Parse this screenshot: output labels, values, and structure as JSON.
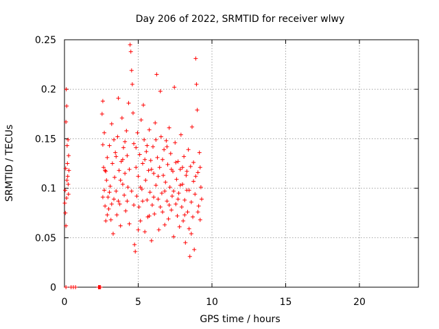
{
  "chart_data": {
    "type": "scatter",
    "title": "Day 206 of 2022, SRMTID for receiver wlwy",
    "xlabel": "GPS time / hours",
    "ylabel": "SRMTID / TECUs",
    "xlim": [
      0,
      24
    ],
    "ylim": [
      0,
      0.25
    ],
    "xticks": [
      0,
      5,
      10,
      15,
      20
    ],
    "yticks": [
      0,
      0.05,
      0.1,
      0.15,
      0.2,
      0.25
    ],
    "ytick_labels": [
      "0",
      "0.05",
      "0.1",
      "0.15",
      "0.2",
      "0.25"
    ],
    "grid": true,
    "marker": "+",
    "color": "#ff0000",
    "series": [
      {
        "name": "SRMTID",
        "points": [
          [
            0.05,
            0.098
          ],
          [
            0.08,
            0.12
          ],
          [
            0.1,
            0.167
          ],
          [
            0.12,
            0.2
          ],
          [
            0.15,
            0.183
          ],
          [
            0.18,
            0.143
          ],
          [
            0.2,
            0.125
          ],
          [
            0.22,
            0.112
          ],
          [
            0.25,
            0.104
          ],
          [
            0.28,
            0.133
          ],
          [
            0.06,
            0.075
          ],
          [
            0.1,
            0.062
          ],
          [
            0.14,
            0.09
          ],
          [
            0.17,
            0.108
          ],
          [
            0.3,
            0.118
          ],
          [
            0.02,
            0.085
          ],
          [
            0.24,
            0.149
          ],
          [
            0.27,
            0.094
          ],
          [
            2.55,
            0.175
          ],
          [
            2.6,
            0.144
          ],
          [
            2.65,
            0.121
          ],
          [
            2.7,
            0.098
          ],
          [
            2.75,
            0.082
          ],
          [
            2.8,
            0.067
          ],
          [
            2.85,
            0.108
          ],
          [
            2.9,
            0.131
          ],
          [
            2.6,
            0.188
          ],
          [
            2.7,
            0.156
          ],
          [
            2.8,
            0.117
          ],
          [
            2.95,
            0.091
          ],
          [
            3.0,
            0.079
          ],
          [
            3.05,
            0.143
          ],
          [
            3.1,
            0.102
          ],
          [
            3.15,
            0.068
          ],
          [
            3.2,
            0.165
          ],
          [
            3.25,
            0.125
          ],
          [
            3.3,
            0.054
          ],
          [
            3.35,
            0.089
          ],
          [
            3.4,
            0.111
          ],
          [
            3.45,
            0.136
          ],
          [
            3.5,
            0.097
          ],
          [
            3.55,
            0.073
          ],
          [
            3.6,
            0.152
          ],
          [
            3.65,
            0.191
          ],
          [
            3.7,
            0.118
          ],
          [
            3.75,
            0.084
          ],
          [
            3.8,
            0.062
          ],
          [
            3.85,
            0.127
          ],
          [
            3.9,
            0.171
          ],
          [
            3.95,
            0.104
          ],
          [
            4.0,
            0.141
          ],
          [
            4.05,
            0.093
          ],
          [
            4.1,
            0.115
          ],
          [
            4.15,
            0.077
          ],
          [
            4.2,
            0.158
          ],
          [
            4.25,
            0.133
          ],
          [
            4.3,
            0.101
          ],
          [
            4.35,
            0.186
          ],
          [
            4.4,
            0.064
          ],
          [
            4.45,
            0.245
          ],
          [
            4.5,
            0.238
          ],
          [
            4.55,
            0.219
          ],
          [
            4.6,
            0.205
          ],
          [
            4.65,
            0.176
          ],
          [
            4.7,
            0.145
          ],
          [
            4.75,
            0.043
          ],
          [
            4.8,
            0.036
          ],
          [
            4.85,
            0.121
          ],
          [
            4.9,
            0.092
          ],
          [
            4.95,
            0.156
          ],
          [
            5.0,
            0.112
          ],
          [
            5.05,
            0.081
          ],
          [
            5.1,
            0.134
          ],
          [
            5.15,
            0.067
          ],
          [
            5.2,
            0.169
          ],
          [
            5.25,
            0.099
          ],
          [
            5.3,
            0.125
          ],
          [
            5.35,
            0.184
          ],
          [
            5.4,
            0.149
          ],
          [
            5.45,
            0.056
          ],
          [
            5.5,
            0.108
          ],
          [
            5.55,
            0.137
          ],
          [
            5.6,
            0.088
          ],
          [
            5.65,
            0.071
          ],
          [
            5.7,
            0.118
          ],
          [
            5.75,
            0.159
          ],
          [
            5.8,
            0.096
          ],
          [
            5.85,
            0.128
          ],
          [
            5.9,
            0.047
          ],
          [
            5.95,
            0.083
          ],
          [
            6.0,
            0.142
          ],
          [
            6.05,
            0.115
          ],
          [
            6.1,
            0.074
          ],
          [
            6.15,
            0.166
          ],
          [
            6.2,
            0.103
          ],
          [
            6.25,
            0.215
          ],
          [
            6.3,
            0.131
          ],
          [
            6.35,
            0.089
          ],
          [
            6.4,
            0.058
          ],
          [
            6.45,
            0.121
          ],
          [
            6.5,
            0.198
          ],
          [
            6.55,
            0.152
          ],
          [
            6.6,
            0.095
          ],
          [
            6.65,
            0.076
          ],
          [
            6.7,
            0.113
          ],
          [
            6.75,
            0.139
          ],
          [
            6.8,
            0.063
          ],
          [
            6.85,
            0.106
          ],
          [
            6.9,
            0.148
          ],
          [
            6.95,
            0.087
          ],
          [
            7.0,
            0.124
          ],
          [
            7.05,
            0.069
          ],
          [
            7.1,
            0.161
          ],
          [
            7.15,
            0.101
          ],
          [
            7.2,
            0.135
          ],
          [
            7.25,
            0.078
          ],
          [
            7.3,
            0.092
          ],
          [
            7.35,
            0.117
          ],
          [
            7.4,
            0.051
          ],
          [
            7.45,
            0.202
          ],
          [
            7.5,
            0.146
          ],
          [
            7.55,
            0.084
          ],
          [
            7.6,
            0.109
          ],
          [
            7.65,
            0.072
          ],
          [
            7.7,
            0.127
          ],
          [
            7.75,
            0.095
          ],
          [
            7.8,
            0.061
          ],
          [
            7.85,
            0.119
          ],
          [
            7.9,
            0.154
          ],
          [
            7.95,
            0.081
          ],
          [
            8.0,
            0.104
          ],
          [
            8.05,
            0.067
          ],
          [
            8.1,
            0.132
          ],
          [
            8.15,
            0.088
          ],
          [
            8.2,
            0.045
          ],
          [
            8.25,
            0.113
          ],
          [
            8.3,
            0.098
          ],
          [
            8.35,
            0.076
          ],
          [
            8.4,
            0.139
          ],
          [
            8.45,
            0.059
          ],
          [
            8.5,
            0.031
          ],
          [
            8.55,
            0.122
          ],
          [
            8.6,
            0.086
          ],
          [
            8.65,
            0.162
          ],
          [
            8.7,
            0.071
          ],
          [
            8.75,
            0.107
          ],
          [
            8.8,
            0.038
          ],
          [
            8.85,
            0.094
          ],
          [
            8.9,
            0.231
          ],
          [
            8.95,
            0.205
          ],
          [
            9.0,
            0.179
          ],
          [
            9.05,
            0.116
          ],
          [
            9.1,
            0.082
          ],
          [
            9.15,
            0.136
          ],
          [
            9.2,
            0.068
          ],
          [
            9.25,
            0.101
          ],
          [
            9.3,
            0.089
          ],
          [
            2.6,
            0.091
          ],
          [
            2.75,
            0.118
          ],
          [
            2.9,
            0.073
          ],
          [
            3.05,
            0.096
          ],
          [
            3.2,
            0.084
          ],
          [
            3.35,
            0.149
          ],
          [
            3.5,
            0.132
          ],
          [
            3.65,
            0.087
          ],
          [
            3.8,
            0.108
          ],
          [
            3.95,
            0.129
          ],
          [
            4.1,
            0.147
          ],
          [
            4.25,
            0.087
          ],
          [
            4.4,
            0.119
          ],
          [
            4.55,
            0.097
          ],
          [
            4.7,
            0.083
          ],
          [
            4.85,
            0.141
          ],
          [
            5.0,
            0.058
          ],
          [
            5.15,
            0.101
          ],
          [
            5.3,
            0.087
          ],
          [
            5.45,
            0.129
          ],
          [
            5.6,
            0.143
          ],
          [
            5.75,
            0.072
          ],
          [
            5.9,
            0.119
          ],
          [
            6.05,
            0.091
          ],
          [
            6.2,
            0.149
          ],
          [
            6.35,
            0.112
          ],
          [
            6.5,
            0.081
          ],
          [
            6.65,
            0.129
          ],
          [
            6.8,
            0.097
          ],
          [
            6.95,
            0.142
          ],
          [
            7.1,
            0.083
          ],
          [
            7.25,
            0.119
          ],
          [
            7.4,
            0.097
          ],
          [
            7.55,
            0.126
          ],
          [
            7.7,
            0.089
          ],
          [
            7.85,
            0.103
          ],
          [
            8.0,
            0.121
          ],
          [
            8.15,
            0.073
          ],
          [
            8.3,
            0.117
          ],
          [
            8.45,
            0.098
          ],
          [
            8.6,
            0.054
          ],
          [
            8.75,
            0.126
          ],
          [
            8.9,
            0.112
          ],
          [
            9.05,
            0.076
          ],
          [
            9.2,
            0.121
          ],
          [
            0.1,
            0.0
          ],
          [
            0.45,
            0.0
          ],
          [
            0.6,
            0.0
          ],
          [
            0.75,
            0.0
          ],
          [
            2.3,
            0.0
          ],
          [
            2.35,
            0.0
          ],
          [
            2.4,
            0.0
          ],
          [
            2.45,
            0.0
          ]
        ]
      }
    ]
  }
}
